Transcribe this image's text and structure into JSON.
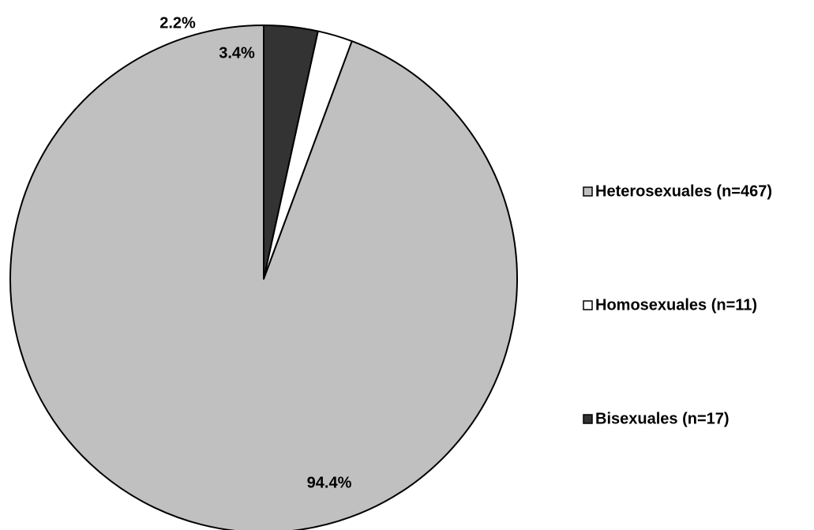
{
  "chart_data": {
    "type": "pie",
    "start_angle_deg": 0,
    "direction": "counterclockwise",
    "legend_position": "right",
    "slices": [
      {
        "name": "Heterosexuales (n=467)",
        "value": 467,
        "percent_label": "94.4%",
        "color": "#c0c0c0"
      },
      {
        "name": "Homosexuales (n=11)",
        "value": 11,
        "percent_label": "2.2%",
        "color": "#ffffff"
      },
      {
        "name": "Bisexuales (n=17)",
        "value": 17,
        "percent_label": "3.4%",
        "color": "#333333"
      }
    ]
  }
}
